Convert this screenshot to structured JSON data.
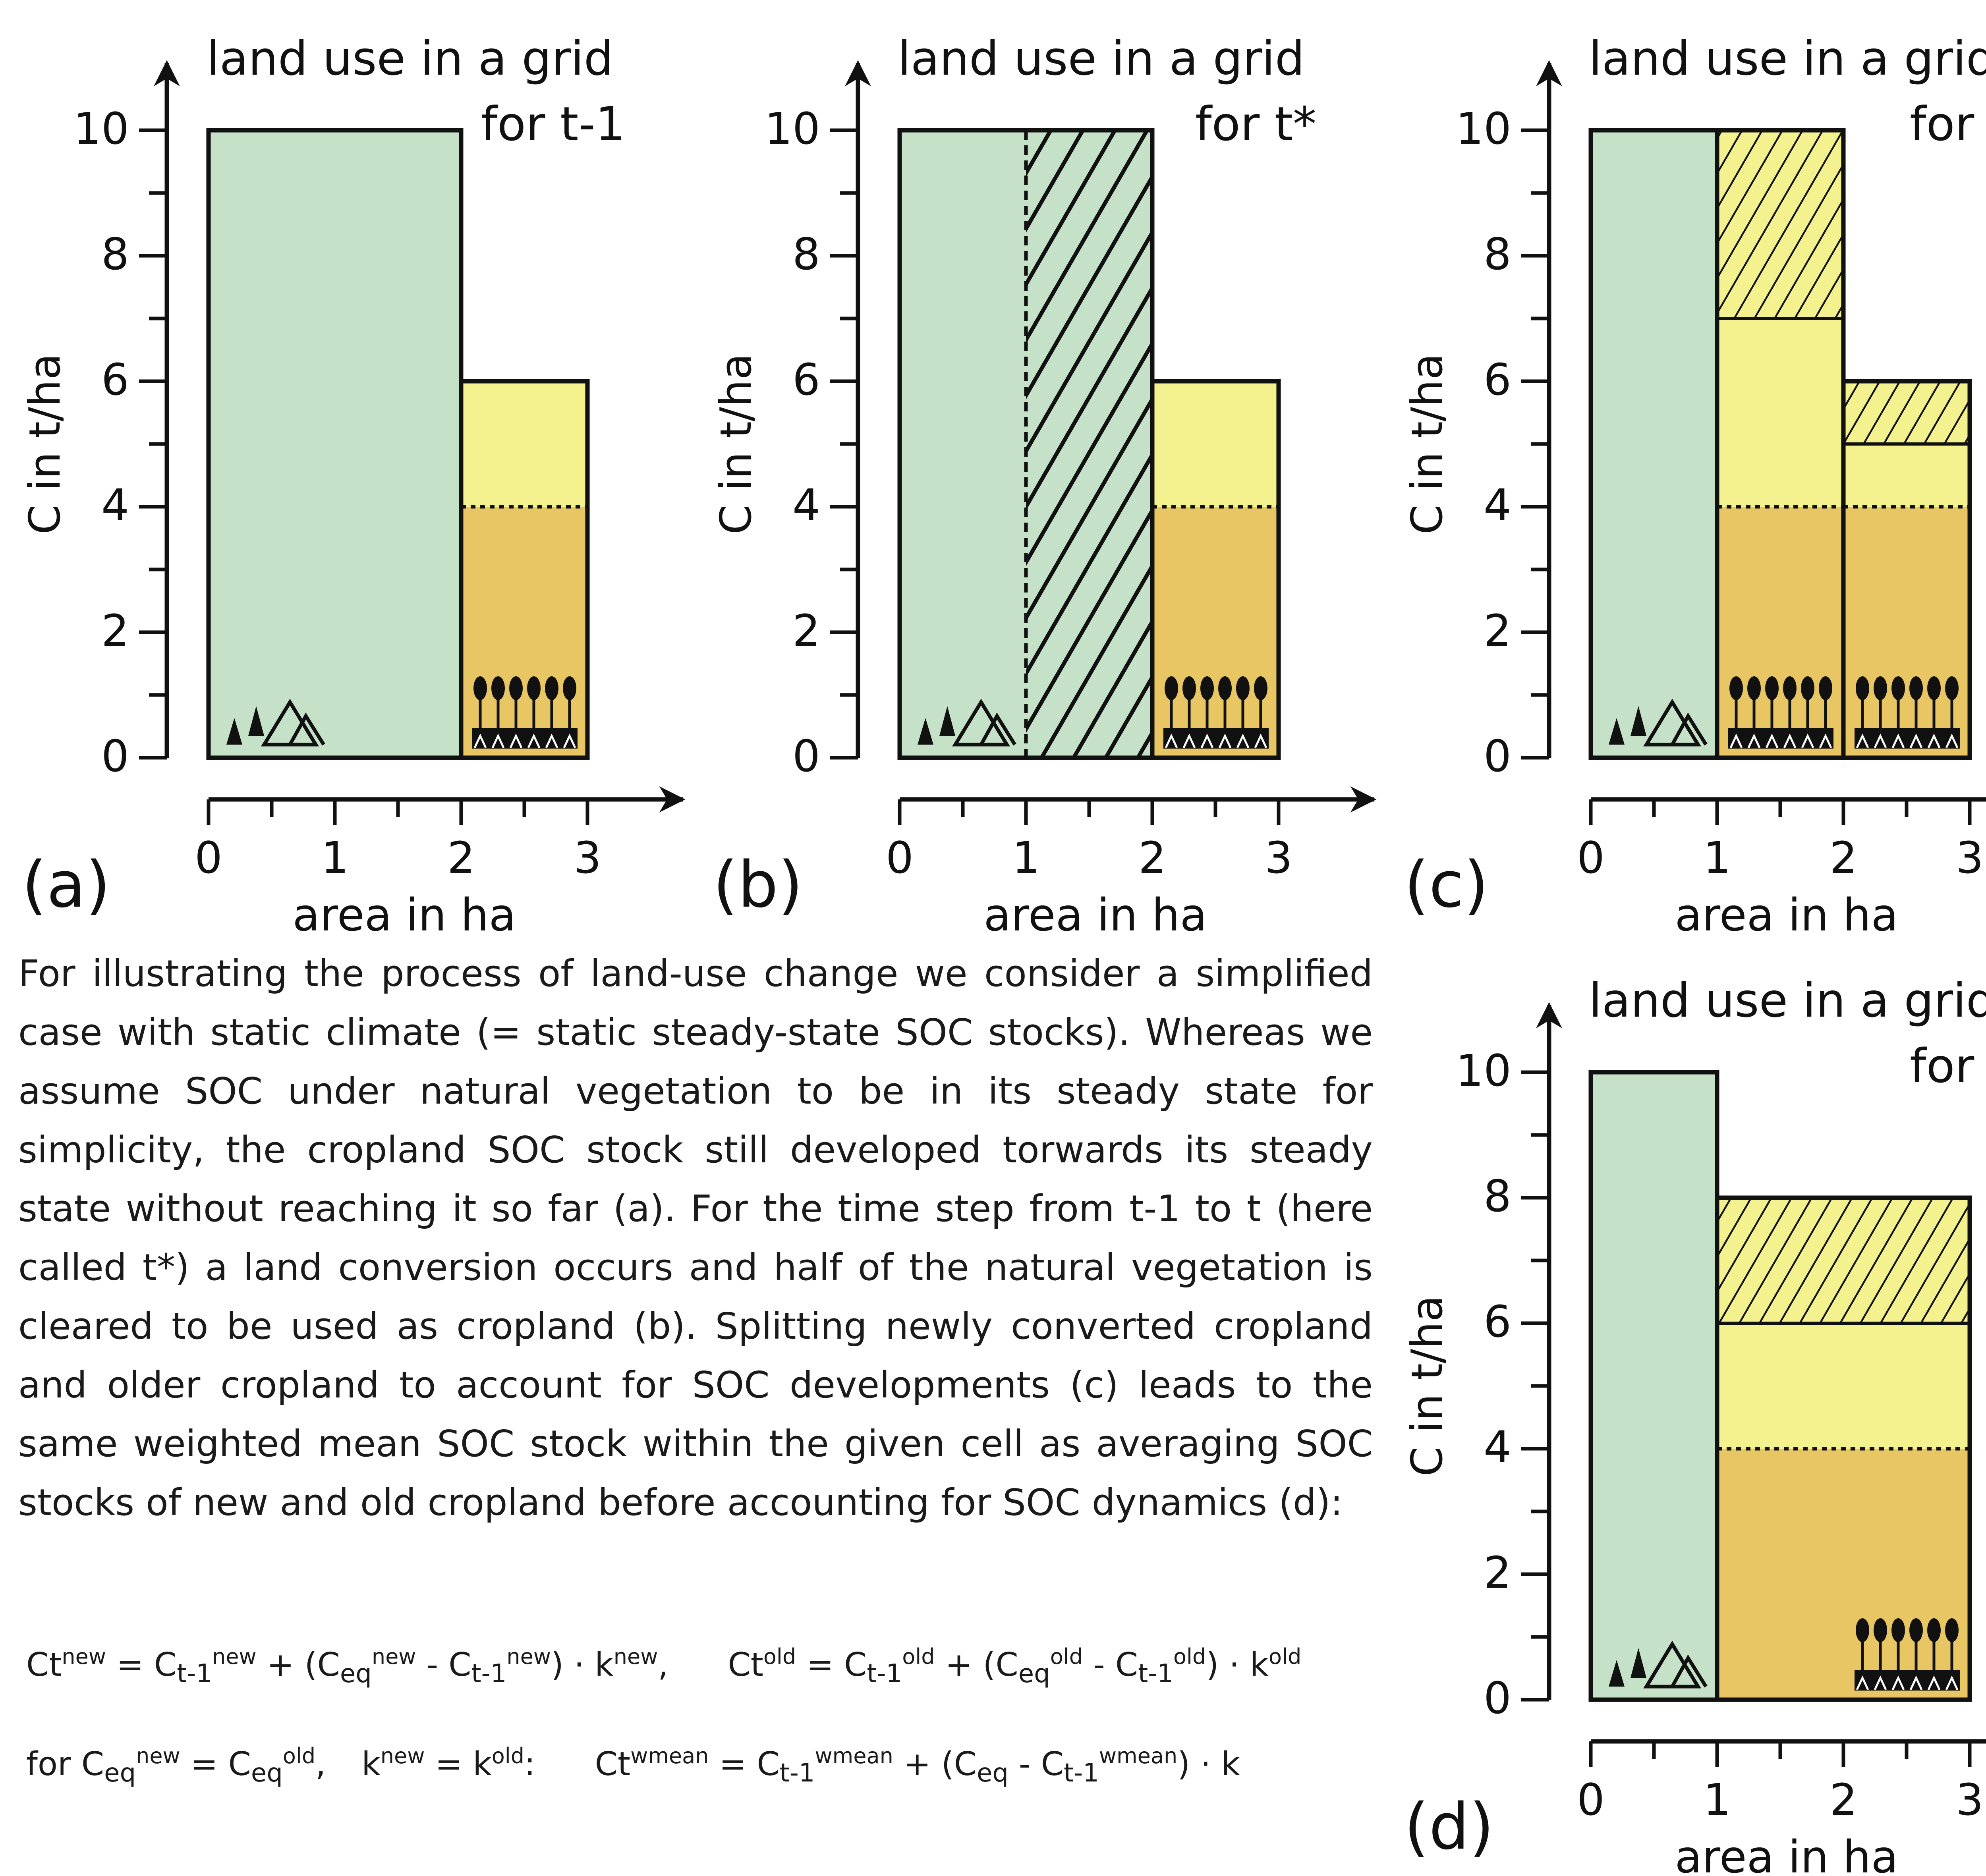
{
  "colors": {
    "natural": "#c5e2c8",
    "crop_steady": "#f4f18f",
    "crop_current": "#e9c664",
    "line": "#111111"
  },
  "icons": {
    "natural_vegetation": "tree-mountain-icon",
    "cropland": "wheat-field-icon"
  },
  "panels": [
    {
      "label": "(a)",
      "title_line1": "land use in a grid",
      "title_line2": "for t-1",
      "ylabel": "C in t/ha",
      "xlabel": "area in ha",
      "yticks": [
        "0",
        "2",
        "4",
        "6",
        "8",
        "10"
      ],
      "xticks": [
        "0",
        "1",
        "2",
        "3"
      ],
      "blocks": [
        {
          "type": "natural",
          "x0": 0,
          "x1": 2,
          "c": 10
        },
        {
          "type": "cropland",
          "x0": 2,
          "x1": 3,
          "c_current": 4,
          "c_steady": 6
        }
      ]
    },
    {
      "label": "(b)",
      "title_line1": "land use in a grid",
      "title_line2": "for t*",
      "ylabel": "C in t/ha",
      "xlabel": "area in ha",
      "yticks": [
        "0",
        "2",
        "4",
        "6",
        "8",
        "10"
      ],
      "xticks": [
        "0",
        "1",
        "2",
        "3"
      ],
      "blocks": [
        {
          "type": "natural",
          "x0": 0,
          "x1": 1,
          "c": 10
        },
        {
          "type": "converted",
          "x0": 1,
          "x1": 2,
          "c": 10
        },
        {
          "type": "cropland",
          "x0": 2,
          "x1": 3,
          "c_current": 4,
          "c_steady": 6
        }
      ]
    },
    {
      "label": "(c)",
      "title_line1": "land use in a grid",
      "title_line2": "for t",
      "ylabel": "C in t/ha",
      "xlabel": "area in ha",
      "yticks": [
        "0",
        "2",
        "4",
        "6",
        "8",
        "10"
      ],
      "xticks": [
        "0",
        "1",
        "2",
        "3"
      ],
      "blocks": [
        {
          "type": "natural",
          "x0": 0,
          "x1": 1,
          "c": 10
        },
        {
          "type": "cropland",
          "x0": 1,
          "x1": 2,
          "c_current": 4,
          "c_new": 7,
          "c_prev": 10
        },
        {
          "type": "cropland",
          "x0": 2,
          "x1": 3,
          "c_current": 4,
          "c_new": 5,
          "c_prev": 6
        }
      ]
    },
    {
      "label": "(d)",
      "title_line1": "land use in a grid",
      "title_line2": "for t",
      "ylabel": "C in t/ha",
      "xlabel": "area in ha",
      "yticks": [
        "0",
        "2",
        "4",
        "6",
        "8",
        "10"
      ],
      "xticks": [
        "0",
        "1",
        "2",
        "3"
      ],
      "blocks": [
        {
          "type": "natural",
          "x0": 0,
          "x1": 1,
          "c": 10
        },
        {
          "type": "cropland",
          "x0": 1,
          "x1": 3,
          "c_current": 4,
          "c_new": 6,
          "c_prev": 8
        }
      ]
    }
  ],
  "text": {
    "paragraph": "For illustrating the process of land-use change we consider a simplified case with static climate (= static steady-state SOC stocks). Whereas we assume SOC under natural vegetation to be in its steady state for simplicity, the cropland SOC stock still developed torwards its steady state without reaching it so far (a). For the time step from t-1 to t (here called t*) a land conversion occurs and half of the natural vegetation is cleared to be used as cropland (b). Splitting newly converted cropland and older cropland to account for SOC developments (c) leads to the same weighted mean SOC stock within the given cell as averaging SOC stocks of new and old cropland before accounting for SOC dynamics (d):"
  },
  "equations": {
    "C": "C",
    "t": "t",
    "tm1": "t-1",
    "eq": "eq",
    "k": "k",
    "new": "new",
    "old": "old",
    "wmean": "wmean",
    "equals": "=",
    "plus": "+",
    "minus": "-",
    "dot": "·",
    "lparen": "(",
    "rparen": ")",
    "comma": ",",
    "colon": ":",
    "for_word": "for"
  }
}
